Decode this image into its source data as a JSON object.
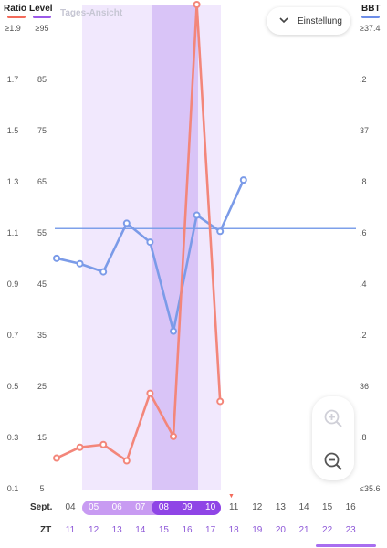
{
  "header": {
    "ratio_label": "Ratio",
    "level_label": "Level",
    "bbt_label": "BBT",
    "view_mode": "Tages-Ansicht",
    "settings_label": "Einstellung",
    "ratio_color": "#f36a5a",
    "level_color": "#9b59e8",
    "bbt_color": "#6d8ee8"
  },
  "axes": {
    "ratio_ticks": [
      "≥1.9",
      "1.7",
      "1.5",
      "1.3",
      "1.1",
      "0.9",
      "0.7",
      "0.5",
      "0.3",
      "0.1"
    ],
    "level_ticks": [
      "≥95",
      "85",
      "75",
      "65",
      "55",
      "45",
      "35",
      "25",
      "15",
      "5"
    ],
    "bbt_ticks": [
      "≥37.4",
      ".2",
      "37",
      ".8",
      ".6",
      ".4",
      ".2",
      "36",
      ".8",
      "≤35.6"
    ]
  },
  "dates": {
    "month_label": "Sept.",
    "days": [
      "04",
      "05",
      "06",
      "07",
      "08",
      "09",
      "10",
      "11",
      "12",
      "13",
      "14",
      "15",
      "16"
    ],
    "cycle_label": "ZT",
    "cycle_days": [
      "11",
      "12",
      "13",
      "14",
      "15",
      "16",
      "17",
      "18",
      "19",
      "20",
      "21",
      "22",
      "23"
    ],
    "today_marker": "▼"
  },
  "chart_data": {
    "type": "line",
    "categories": [
      "04",
      "05",
      "06",
      "07",
      "08",
      "09",
      "10",
      "11",
      "12",
      "13",
      "14",
      "15",
      "16"
    ],
    "series": [
      {
        "name": "Ratio",
        "values": [
          0.22,
          0.26,
          0.27,
          0.21,
          0.46,
          0.3,
          2.0,
          0.43,
          null,
          null,
          null,
          null,
          null
        ]
      },
      {
        "name": "BBT",
        "values": [
          36.46,
          36.44,
          36.41,
          36.59,
          36.52,
          36.19,
          36.62,
          36.56,
          36.75,
          null,
          null,
          null,
          null
        ]
      }
    ],
    "bbt_coverline": 36.57,
    "ylim_ratio": [
      0.1,
      1.9
    ],
    "ylim_bbt": [
      35.6,
      37.4
    ],
    "fertile_window": [
      "05",
      "10"
    ],
    "peak_days": [
      "08",
      "09"
    ]
  }
}
